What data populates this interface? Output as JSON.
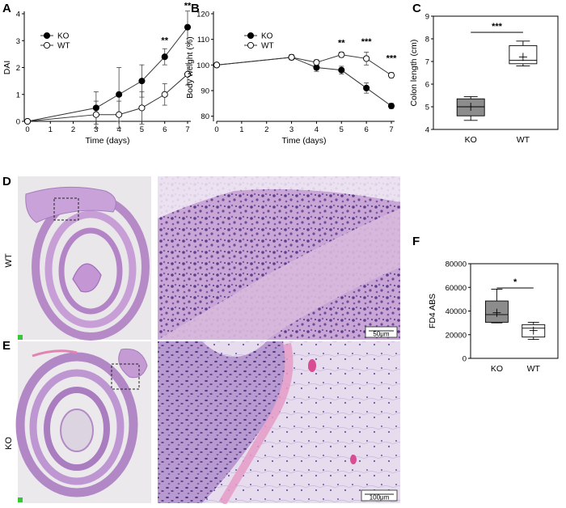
{
  "panels": {
    "A": "A",
    "B": "B",
    "C": "C",
    "D": "D",
    "E": "E",
    "F": "F"
  },
  "colors": {
    "ko": "#000000",
    "wt": "#ffffff",
    "ko_box": "#8c8c8c",
    "wt_box": "#ffffff",
    "he_pink": "#d9a8d6",
    "he_purple": "#6b4f9c"
  },
  "histology": {
    "wt_label": "WT",
    "ko_label": "KO",
    "scale_wt": "50μm",
    "scale_ko": "100μm"
  },
  "chart_data": [
    {
      "id": "A",
      "type": "line",
      "xlabel": "Time (days)",
      "ylabel": "DAI",
      "x": [
        0,
        3,
        4,
        5,
        6,
        7
      ],
      "xticks": [
        0,
        1,
        2,
        3,
        4,
        5,
        6,
        7
      ],
      "yticks": [
        0,
        1,
        2,
        3,
        4
      ],
      "xlim": [
        0,
        7
      ],
      "ylim": [
        0,
        4
      ],
      "series": [
        {
          "name": "KO",
          "marker": "filled",
          "values": [
            0,
            0.5,
            1.0,
            1.5,
            2.4,
            3.5
          ],
          "err": [
            0,
            0.6,
            1.0,
            0.6,
            0.3,
            0.6
          ]
        },
        {
          "name": "WT",
          "marker": "open",
          "values": [
            0,
            0.25,
            0.25,
            0.5,
            1.0,
            1.75
          ],
          "err": [
            0,
            0.5,
            0.5,
            0.6,
            0.4,
            0.4
          ]
        }
      ],
      "annotations": [
        {
          "x": 6,
          "y": 2.9,
          "text": "**"
        },
        {
          "x": 7,
          "y": 4.2,
          "text": "**"
        }
      ],
      "legend": "top-left"
    },
    {
      "id": "B",
      "type": "line",
      "xlabel": "Time (days)",
      "ylabel": "Body weight (%)",
      "x": [
        0,
        3,
        4,
        5,
        6,
        7
      ],
      "xticks": [
        0,
        1,
        2,
        3,
        4,
        5,
        6,
        7
      ],
      "yticks": [
        80,
        90,
        100,
        110,
        120
      ],
      "xlim": [
        0,
        7
      ],
      "ylim": [
        78,
        120
      ],
      "series": [
        {
          "name": "KO",
          "marker": "filled",
          "values": [
            100,
            103,
            99,
            98,
            91,
            84
          ],
          "err": [
            0,
            1,
            1.5,
            1.5,
            2,
            1
          ]
        },
        {
          "name": "WT",
          "marker": "open",
          "values": [
            100,
            103,
            101,
            104,
            102.5,
            96
          ],
          "err": [
            0,
            1,
            1,
            1,
            2.5,
            1
          ]
        }
      ],
      "annotations": [
        {
          "x": 5,
          "y": 107.5,
          "text": "**"
        },
        {
          "x": 6,
          "y": 108,
          "text": "***"
        },
        {
          "x": 7,
          "y": 101.5,
          "text": "***"
        }
      ],
      "legend": "top-left"
    },
    {
      "id": "C",
      "type": "box",
      "ylabel": "Colon length (cm)",
      "categories": [
        "KO",
        "WT"
      ],
      "yticks": [
        4,
        5,
        6,
        7,
        8,
        9
      ],
      "ylim": [
        4,
        9
      ],
      "boxes": [
        {
          "name": "KO",
          "min": 4.4,
          "q1": 4.6,
          "median": 5.0,
          "q3": 5.35,
          "max": 5.45,
          "mean": 5.0,
          "fill": "grey"
        },
        {
          "name": "WT",
          "min": 6.8,
          "q1": 6.9,
          "median": 7.05,
          "q3": 7.7,
          "max": 7.9,
          "mean": 7.2,
          "fill": "white"
        }
      ],
      "significance": "***"
    },
    {
      "id": "F",
      "type": "box",
      "ylabel": "FD4 ABS",
      "categories": [
        "KO",
        "WT"
      ],
      "yticks": [
        0,
        20000,
        40000,
        60000,
        80000
      ],
      "ylim": [
        0,
        80000
      ],
      "boxes": [
        {
          "name": "KO",
          "min": 30000,
          "q1": 30500,
          "median": 37000,
          "q3": 48500,
          "max": 58500,
          "mean": 38500,
          "fill": "grey"
        },
        {
          "name": "WT",
          "min": 16000,
          "q1": 18000,
          "median": 25500,
          "q3": 28500,
          "max": 30500,
          "mean": 23500,
          "fill": "white"
        }
      ],
      "significance": "*"
    }
  ]
}
